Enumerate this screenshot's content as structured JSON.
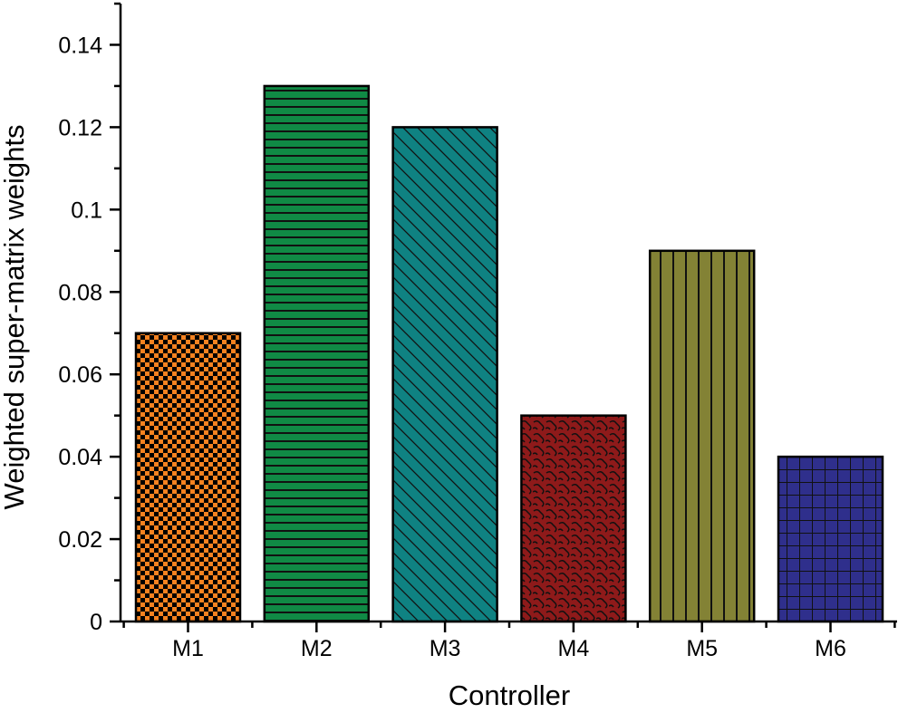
{
  "chart_data": {
    "type": "bar",
    "title": "",
    "xlabel": "Controller",
    "ylabel": "Weighted super-matrix weights",
    "categories": [
      "M1",
      "M2",
      "M3",
      "M4",
      "M5",
      "M6"
    ],
    "values": [
      0.07,
      0.13,
      0.12,
      0.05,
      0.09,
      0.04
    ],
    "ylim": [
      0,
      0.15
    ],
    "yticks": [
      "0",
      "0.02",
      "0.04",
      "0.06",
      "0.08",
      "0.1",
      "0.12",
      "0.14"
    ],
    "grid": false,
    "legend": "none",
    "bar_colors": [
      "#f58220",
      "#108a45",
      "#0f8282",
      "#8e1a1a",
      "#838235",
      "#2f2f8c"
    ],
    "bar_patterns": [
      "checker",
      "horizontal-lines",
      "diagonal-lines",
      "scales",
      "vertical-lines",
      "grid"
    ]
  }
}
